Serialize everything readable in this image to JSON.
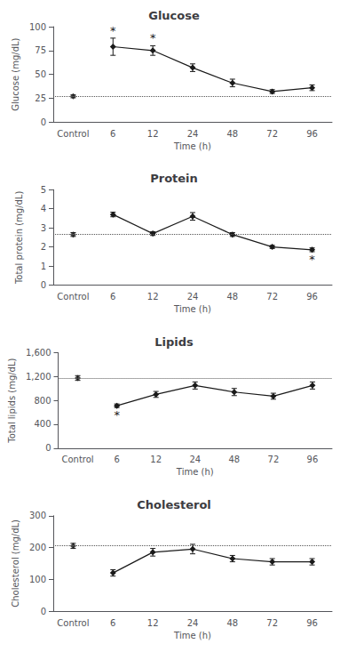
{
  "chart_data": [
    {
      "type": "line",
      "title": "Glucose",
      "xlabel": "Time (h)",
      "ylabel": "Glucose (mg/dL)",
      "categories": [
        "Control",
        "6",
        "12",
        "24",
        "48",
        "72",
        "96"
      ],
      "series": [
        {
          "type": "scatter",
          "values": [
            27,
            null,
            null,
            null,
            null,
            null,
            null
          ],
          "errors": [
            1.5,
            null,
            null,
            null,
            null,
            null,
            null
          ]
        },
        {
          "type": "line",
          "values": [
            null,
            79,
            75,
            57,
            41,
            32,
            36
          ],
          "errors": [
            null,
            9,
            5,
            4,
            4,
            2,
            3
          ]
        }
      ],
      "color": "#1a1a1a",
      "marker": "diamond",
      "hline": {
        "value": 27,
        "color": "#555555",
        "line_style": "dotted"
      },
      "annotations": [
        {
          "category": "6",
          "text": "*",
          "position": "above"
        },
        {
          "category": "12",
          "text": "*",
          "position": "above"
        }
      ],
      "ylim": [
        0,
        100
      ],
      "yticks": [
        0,
        25,
        50,
        75,
        100
      ],
      "grid": false
    },
    {
      "type": "line",
      "title": "Protein",
      "xlabel": "Time (h)",
      "ylabel": "Total protein (mg/dL)",
      "categories": [
        "Control",
        "6",
        "12",
        "24",
        "48",
        "72",
        "96"
      ],
      "series": [
        {
          "type": "scatter",
          "values": [
            2.65,
            null,
            null,
            null,
            null,
            null,
            null
          ],
          "errors": [
            0.1,
            null,
            null,
            null,
            null,
            null,
            null
          ]
        },
        {
          "type": "line",
          "values": [
            null,
            3.7,
            2.7,
            3.6,
            2.65,
            2.0,
            1.85
          ],
          "errors": [
            null,
            0.12,
            0.1,
            0.2,
            0.1,
            0.08,
            0.1
          ]
        }
      ],
      "color": "#1a1a1a",
      "marker": "diamond",
      "hline": {
        "value": 2.65,
        "color": "#555555",
        "line_style": "dotted"
      },
      "annotations": [
        {
          "category": "96",
          "text": "*",
          "position": "below"
        }
      ],
      "ylim": [
        0,
        5
      ],
      "yticks": [
        0,
        1,
        2,
        3,
        4,
        5
      ],
      "grid": false
    },
    {
      "type": "line",
      "title": "Lipids",
      "xlabel": "Time (h)",
      "ylabel": "Total lipids (mg/dL)",
      "categories": [
        "Control",
        "6",
        "12",
        "24",
        "48",
        "72",
        "96"
      ],
      "series": [
        {
          "type": "scatter",
          "values": [
            1175,
            null,
            null,
            null,
            null,
            null,
            null
          ],
          "errors": [
            40,
            null,
            null,
            null,
            null,
            null,
            null
          ]
        },
        {
          "type": "line",
          "values": [
            null,
            710,
            900,
            1050,
            940,
            870,
            1050
          ],
          "errors": [
            null,
            30,
            50,
            60,
            60,
            50,
            60
          ]
        }
      ],
      "color": "#1a1a1a",
      "marker": "diamond",
      "hline": {
        "value": 1175,
        "color": "#555555",
        "line_style": "dotted"
      },
      "annotations": [
        {
          "category": "6",
          "text": "*",
          "position": "below"
        }
      ],
      "ylim": [
        0,
        1600
      ],
      "yticks": [
        0,
        400,
        800,
        1200,
        1600
      ],
      "grid": false
    },
    {
      "type": "line",
      "title": "Cholesterol",
      "xlabel": "Time (h)",
      "ylabel": "Cholesterol (mg/dL)",
      "categories": [
        "Control",
        "6",
        "12",
        "24",
        "48",
        "72",
        "96"
      ],
      "series": [
        {
          "type": "scatter",
          "values": [
            205,
            null,
            null,
            null,
            null,
            null,
            null
          ],
          "errors": [
            8,
            null,
            null,
            null,
            null,
            null,
            null
          ]
        },
        {
          "type": "line",
          "values": [
            null,
            120,
            185,
            195,
            165,
            155,
            155
          ],
          "errors": [
            null,
            10,
            12,
            15,
            10,
            10,
            10
          ]
        }
      ],
      "color": "#1a1a1a",
      "marker": "diamond",
      "hline": {
        "value": 205,
        "color": "#555555",
        "line_style": "dotted"
      },
      "ylim": [
        0,
        300
      ],
      "yticks": [
        0,
        100,
        200,
        300
      ],
      "grid": false
    }
  ]
}
